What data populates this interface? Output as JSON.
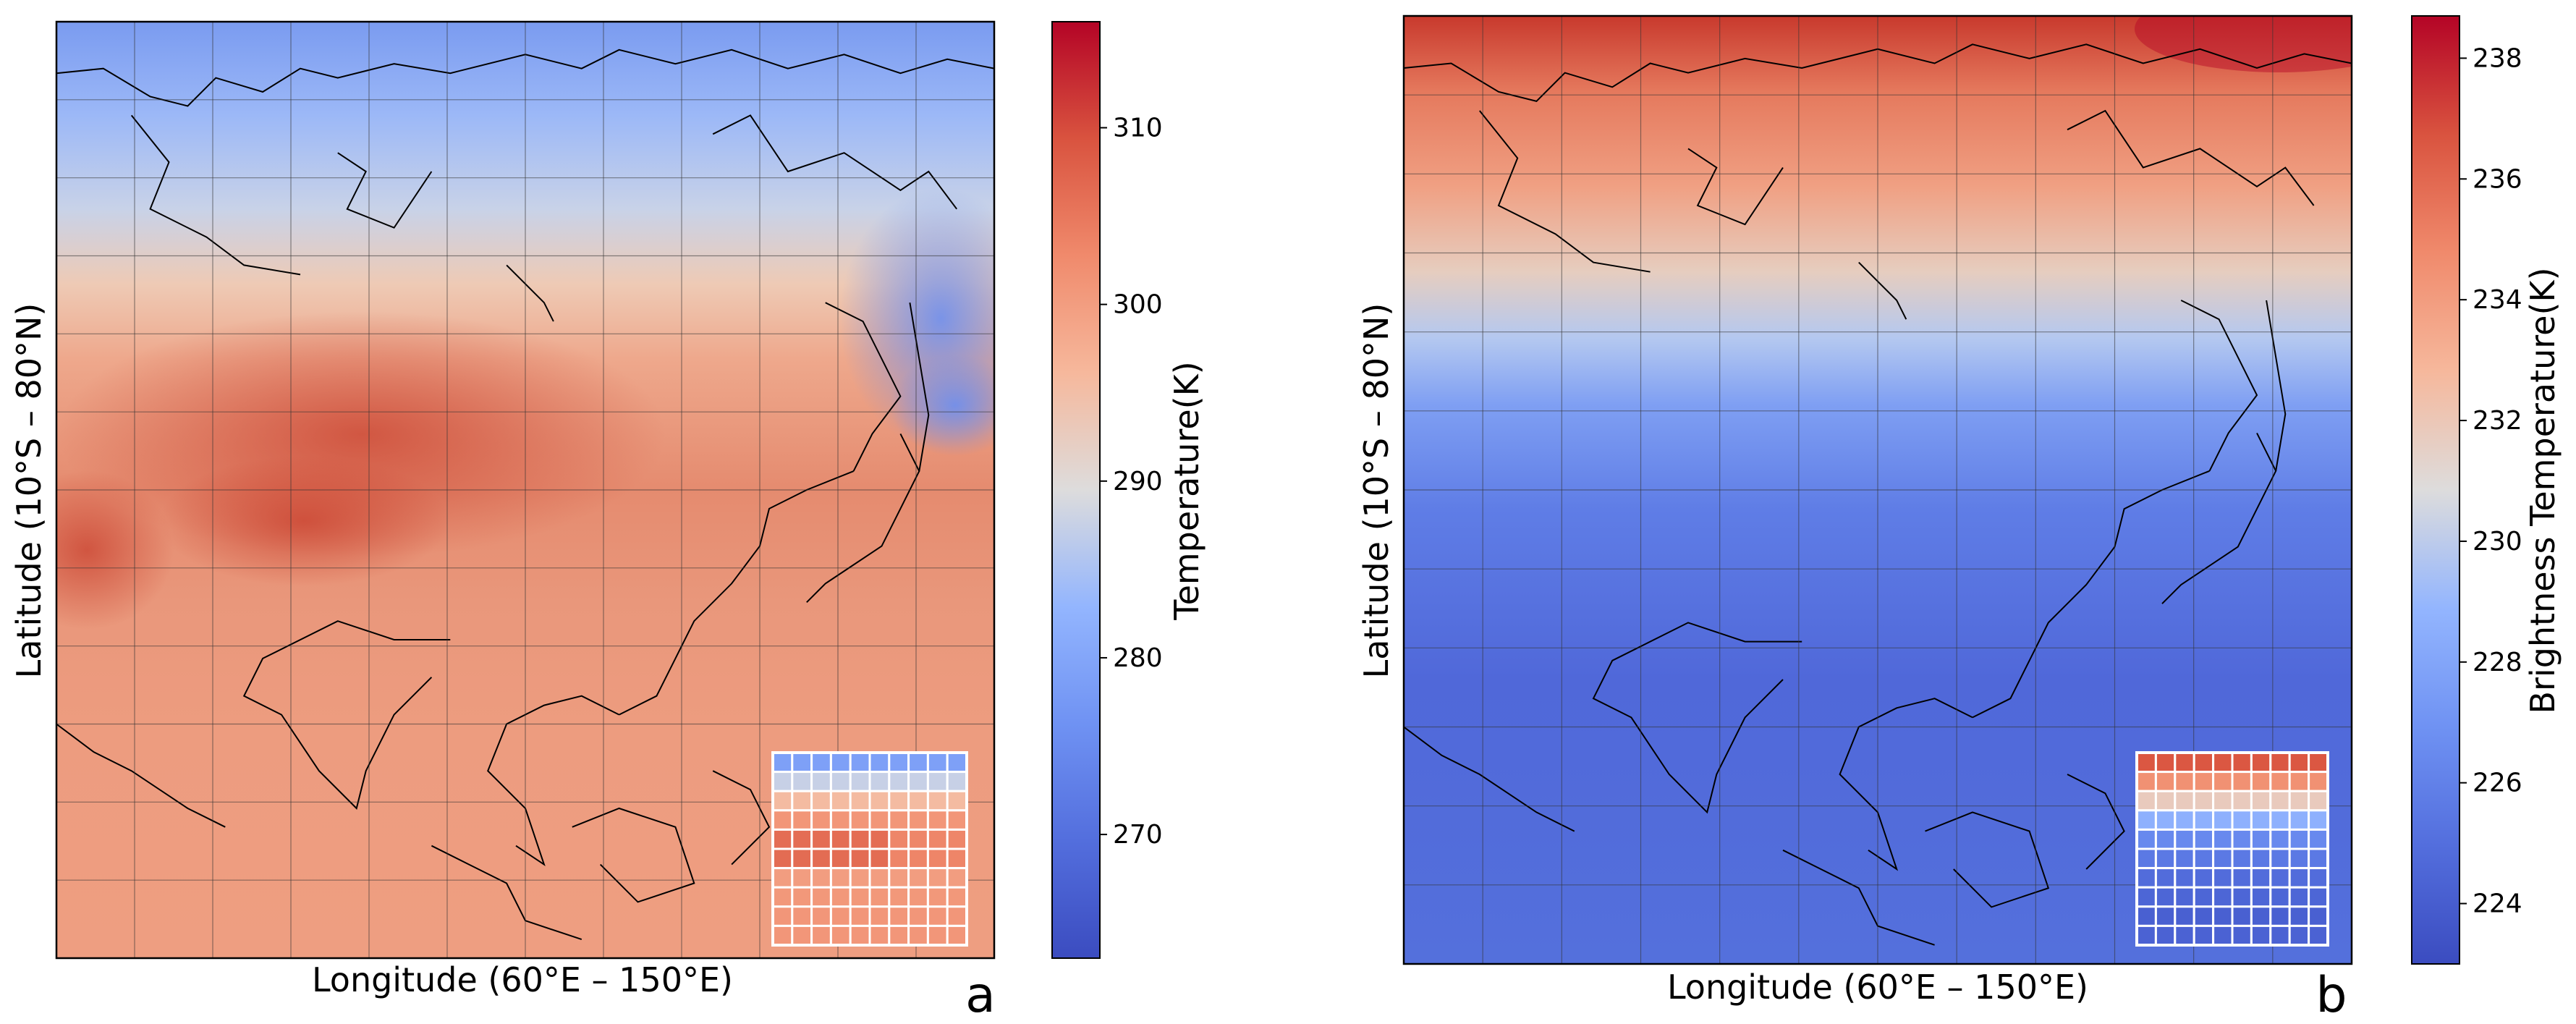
{
  "chart_data": [
    {
      "type": "heatmap",
      "panel": "a",
      "variable": "Temperature",
      "xlabel": "Longitude (60°E – 150°E)",
      "ylabel": "Latitude (10°S – 80°N)",
      "colorbar_label": "Temperature(K)",
      "colorbar_ticks": [
        270,
        280,
        290,
        300,
        310
      ],
      "colorbar_range": [
        263,
        316
      ],
      "colormap": "coolwarm",
      "lon_range": [
        60,
        150
      ],
      "lat_range": [
        -10,
        80
      ],
      "grid": true,
      "grid_divisions": 12,
      "latitude_profile": [
        {
          "lat": 80,
          "value": 275
        },
        {
          "lat": 72,
          "value": 282
        },
        {
          "lat": 62,
          "value": 292
        },
        {
          "lat": 52,
          "value": 300
        },
        {
          "lat": 42,
          "value": 303
        },
        {
          "lat": 32,
          "value": 304
        },
        {
          "lat": 22,
          "value": 300
        },
        {
          "lat": 10,
          "value": 301
        },
        {
          "lat": -10,
          "value": 301
        }
      ],
      "inset": "coarse 10x10 grid in lower right showing regridded field"
    },
    {
      "type": "heatmap",
      "panel": "b",
      "variable": "Brightness Temperature",
      "xlabel": "Longitude (60°E – 150°E)",
      "ylabel": "Latitude (10°S – 80°N)",
      "colorbar_label": "Brightness Temperature(K)",
      "colorbar_ticks": [
        224,
        226,
        228,
        230,
        232,
        234,
        236,
        238
      ],
      "colorbar_range": [
        223,
        238.7
      ],
      "colormap": "coolwarm",
      "lon_range": [
        60,
        150
      ],
      "lat_range": [
        -10,
        80
      ],
      "grid": true,
      "grid_divisions": 12,
      "latitude_profile": [
        {
          "lat": 80,
          "value": 237.5
        },
        {
          "lat": 70,
          "value": 235.5
        },
        {
          "lat": 58,
          "value": 232
        },
        {
          "lat": 50,
          "value": 229
        },
        {
          "lat": 40,
          "value": 226.5
        },
        {
          "lat": 25,
          "value": 225
        },
        {
          "lat": 0,
          "value": 224
        },
        {
          "lat": -10,
          "value": 224.5
        }
      ],
      "inset": "coarse 10x10 grid in lower right showing regridded field"
    }
  ],
  "panel_letters": {
    "a": "a",
    "b": "b"
  }
}
